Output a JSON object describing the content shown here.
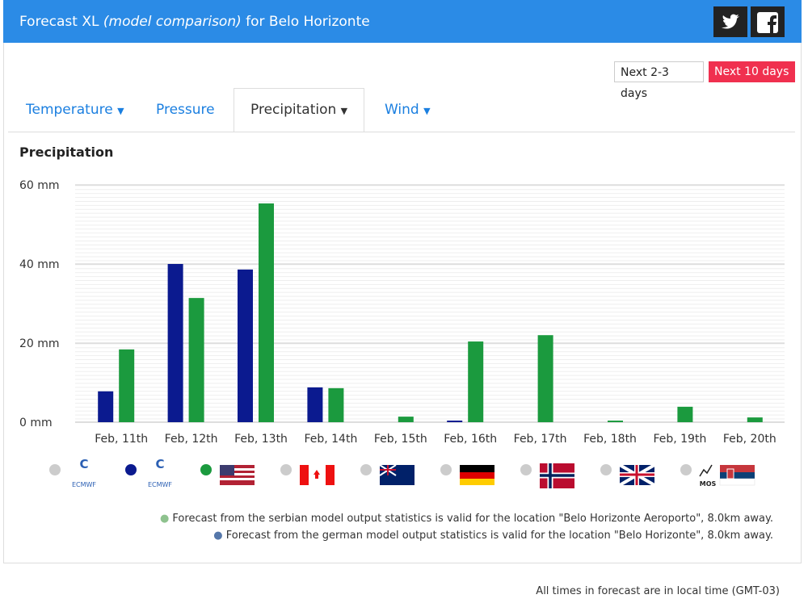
{
  "header": {
    "title": "Forecast XL",
    "subtitle": "(model comparison)",
    "location": "for Belo Horizonte"
  },
  "buttons": [
    "Next 2-3 days",
    "Next 10 days"
  ],
  "tabs": [
    "Temperature",
    "Pressure",
    "Precipitation",
    "Wind"
  ],
  "section_title": "Precipitation",
  "chart_data": {
    "type": "bar",
    "categories": [
      "Feb, 11th",
      "Feb, 12th",
      "Feb, 13th",
      "Feb, 14th",
      "Feb, 15th",
      "Feb, 16th",
      "Feb, 17th",
      "Feb, 18th",
      "Feb, 19th",
      "Feb, 20th"
    ],
    "series": [
      {
        "name": "ECMWF",
        "color": "#0b1a8f",
        "values": [
          7.8,
          40,
          38.6,
          8.8,
          0,
          0.4,
          0,
          0,
          0,
          0
        ]
      },
      {
        "color": "#1b9a3e",
        "values": [
          18.4,
          31.4,
          55.3,
          8.6,
          1.4,
          20.4,
          22,
          0.4,
          3.9,
          1.2
        ]
      }
    ],
    "ylim": [
      0,
      60
    ],
    "yticks": [
      {
        "value": 0,
        "label": "0 mm"
      },
      {
        "value": 20,
        "label": "20 mm"
      },
      {
        "value": 40,
        "label": "40 mm"
      },
      {
        "value": 60,
        "label": "60 mm"
      }
    ],
    "grid": true,
    "inactive_model_label": "ECMWF"
  },
  "notes": [
    "Forecast from the serbian model output statistics is valid for the location \"Belo Horizonte Aeroporto\", 8.0km away.",
    "Forecast from the german model output statistics is valid for the location \"Belo Horizonte\", 8.0km away."
  ],
  "mos_label": "MOS",
  "footer": "All times in forecast are in local time (GMT-03)"
}
